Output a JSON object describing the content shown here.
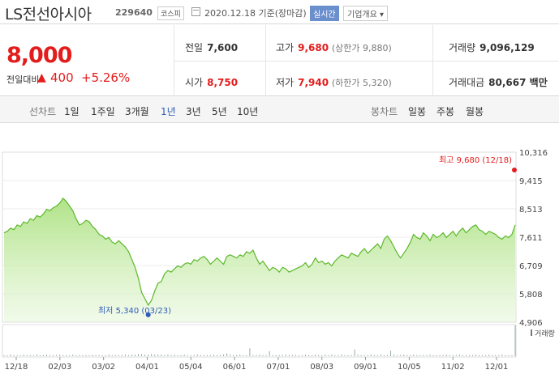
{
  "header": {
    "title": "LS전선아시아",
    "code": "229640",
    "market": "코스피",
    "date_text": "2020.12.18 기준(장마감)",
    "realtime_label": "실시간",
    "company_label": "기업개요 ▾"
  },
  "price": {
    "current": "8,000",
    "diff_label": "전일대비",
    "diff_arrow": "▲",
    "diff": "400",
    "rate": "+5.26%"
  },
  "stats": {
    "prev_close_label": "전일",
    "prev_close": "7,600",
    "high_label": "고가",
    "high": "9,680",
    "upper_limit": "(상한가 9,880)",
    "volume_label": "거래량",
    "volume": "9,096,129",
    "open_label": "시가",
    "open": "8,750",
    "low_label": "저가",
    "low": "7,940",
    "lower_limit": "(하한가 5,320)",
    "amount_label": "거래대금",
    "amount": "80,667 백만"
  },
  "tabs": {
    "line_header": "선차트",
    "line_tabs": [
      "1일",
      "1주일",
      "3개월",
      "1년",
      "3년",
      "5년",
      "10년"
    ],
    "active": "1년",
    "candle_header": "봉차트",
    "candle_tabs": [
      "일봉",
      "주봉",
      "월봉"
    ]
  },
  "colors": {
    "up": "#e31c1c",
    "accent": "#2e5cb8",
    "line": "#5cb82a"
  },
  "chart_data": {
    "type": "area",
    "y_ticks": [
      "10,316",
      "9,415",
      "8,513",
      "7,611",
      "6,709",
      "5,808",
      "4,906"
    ],
    "ylim": [
      4906,
      10316
    ],
    "x_ticks": [
      "12/18",
      "02/03",
      "03/02",
      "04/01",
      "05/04",
      "06/01",
      "07/01",
      "08/03",
      "09/01",
      "10/05",
      "11/02",
      "12/01"
    ],
    "high_annotation": "최고 9,680 (12/18)",
    "low_annotation": "최저 5,340 (03/23)",
    "volume_label": "거래량",
    "series": [
      {
        "values": [
          7750,
          7800,
          7900,
          7850,
          8000,
          7950,
          8100,
          8050,
          8200,
          8150,
          8300,
          8250,
          8350,
          8500,
          8450,
          8550,
          8600,
          8700,
          8850,
          8750,
          8600,
          8450,
          8200,
          8000,
          8050,
          8150,
          8100,
          7950,
          7850,
          7700,
          7650,
          7550,
          7600,
          7450,
          7400,
          7500,
          7400,
          7300,
          7150,
          6900,
          6650,
          6300,
          5850,
          5650,
          5450,
          5600,
          5900,
          6150,
          6200,
          6450,
          6550,
          6500,
          6600,
          6700,
          6650,
          6750,
          6800,
          6750,
          6900,
          6850,
          6950,
          7000,
          6900,
          6750,
          6850,
          6950,
          6850,
          6750,
          7000,
          7050,
          7000,
          6950,
          7050,
          7000,
          7150,
          7100,
          7200,
          6950,
          6750,
          6850,
          6700,
          6550,
          6650,
          6600,
          6500,
          6650,
          6600,
          6500,
          6550,
          6600,
          6650,
          6700,
          6800,
          6650,
          6750,
          6950,
          6800,
          6850,
          6750,
          6800,
          6700,
          6850,
          6950,
          7050,
          7000,
          6950,
          7100,
          7050,
          7000,
          7150,
          7250,
          7100,
          7200,
          7300,
          7400,
          7250,
          7550,
          7650,
          7500,
          7300,
          7100,
          6950,
          7100,
          7250,
          7450,
          7700,
          7600,
          7550,
          7750,
          7650,
          7500,
          7700,
          7600,
          7650,
          7750,
          7600,
          7700,
          7800,
          7650,
          7800,
          7900,
          7750,
          7850,
          7950,
          8000,
          7850,
          7800,
          7700,
          7800,
          7750,
          7700,
          7600,
          7550,
          7650,
          7600,
          7700,
          8000
        ]
      }
    ],
    "volumes": [
      2,
      2,
      3,
      2,
      2,
      2,
      3,
      2,
      2,
      2,
      3,
      2,
      2,
      3,
      2,
      2,
      2,
      3,
      2,
      2,
      2,
      3,
      2,
      2,
      2,
      2,
      2,
      3,
      2,
      2,
      2,
      2,
      3,
      2,
      2,
      2,
      2,
      3,
      2,
      3,
      3,
      4,
      4,
      3,
      3,
      4,
      3,
      3,
      3,
      2,
      3,
      2,
      3,
      2,
      2,
      3,
      2,
      2,
      2,
      3,
      2,
      2,
      2,
      2,
      3,
      2,
      2,
      3,
      5,
      3,
      2,
      2,
      3,
      2,
      2,
      14,
      2,
      2,
      3,
      2,
      2,
      9,
      2,
      2,
      2,
      2,
      3,
      2,
      2,
      2,
      2,
      2,
      3,
      2,
      2,
      3,
      2,
      2,
      3,
      2,
      3,
      2,
      2,
      3,
      2,
      2,
      2,
      12,
      3,
      2,
      2,
      2,
      3,
      2,
      2,
      3,
      2,
      2,
      10,
      3,
      2,
      2,
      3,
      2,
      2,
      3,
      2,
      2,
      2,
      2,
      3,
      2,
      2,
      2,
      2,
      3,
      2,
      2,
      2,
      3,
      2,
      2,
      2,
      2,
      3,
      2,
      2,
      2,
      3,
      2,
      2,
      2,
      3,
      2,
      2,
      2,
      55
    ]
  }
}
